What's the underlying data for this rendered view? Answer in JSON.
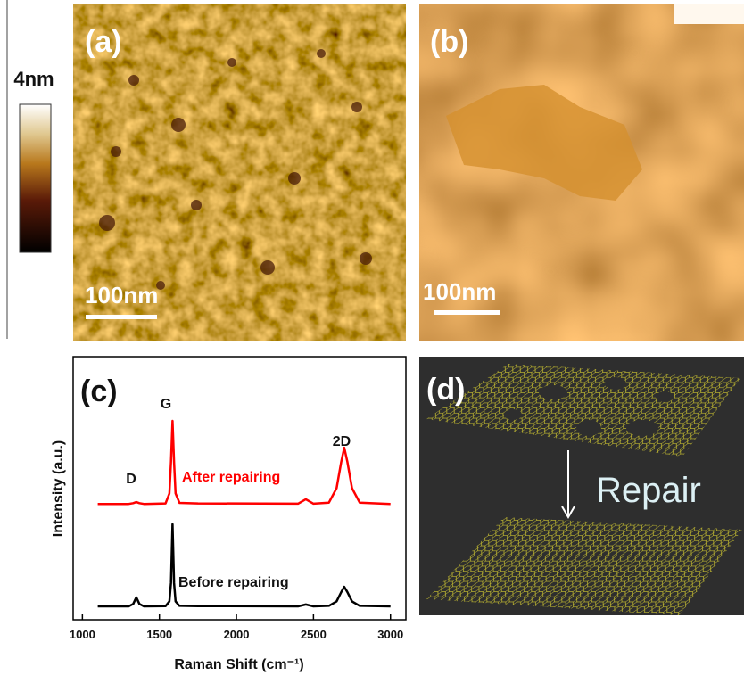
{
  "panels": {
    "a": {
      "label": "(a)",
      "scale_bar": "100nm",
      "colorbar_max": "4nm"
    },
    "b": {
      "label": "(b)",
      "scale_bar": "100nm"
    },
    "d": {
      "label": "(d)",
      "annotation": "Repair"
    }
  },
  "chart_data": {
    "type": "line",
    "xlabel": "Raman Shift (cm⁻¹)",
    "ylabel": "Intensity (a.u.)",
    "annotations": [
      "(c)",
      "G",
      "D",
      "2D"
    ],
    "x": [
      1100,
      1300,
      1330,
      1350,
      1370,
      1400,
      1540,
      1565,
      1575,
      1585,
      1595,
      1605,
      1630,
      1750,
      2400,
      2450,
      2500,
      2600,
      2650,
      2680,
      2700,
      2720,
      2750,
      2800,
      3000
    ],
    "series": [
      {
        "name": "Before repairing",
        "color": "#000000",
        "values": [
          5.1,
          5.1,
          6,
          8.5,
          6,
          5.1,
          5.2,
          7,
          14,
          36.3,
          14,
          7,
          5.3,
          5.2,
          5.1,
          5.8,
          5.1,
          5.3,
          7,
          10.5,
          12.5,
          10.5,
          7,
          5.3,
          5.1
        ]
      },
      {
        "name": "After repairing",
        "color": "#ff0000",
        "values": [
          44,
          44,
          44.3,
          44.7,
          44.3,
          44,
          44.2,
          48,
          60,
          75.6,
          60,
          48,
          44.4,
          44.2,
          44.1,
          45.8,
          44.1,
          44.5,
          50,
          60,
          65.4,
          60,
          50,
          44.5,
          44
        ]
      }
    ],
    "xlim": [
      940,
      3100
    ],
    "ylim": [
      0,
      100
    ],
    "xticks": [
      1000,
      1500,
      2000,
      2500,
      3000
    ]
  }
}
